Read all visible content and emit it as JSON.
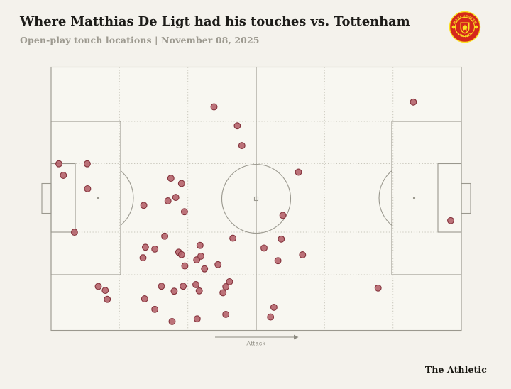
{
  "header": {
    "title": "Where Matthias De Ligt had his touches vs. Tottenham",
    "subtitle": "Open-play touch locations | November 08, 2025",
    "club_badge": {
      "name": "manchester-united-crest",
      "text_top": "MANCHESTER",
      "text_bottom": "UNITED",
      "red": "#d5281b",
      "gold": "#fbe122"
    }
  },
  "footer": {
    "brand": "The Athletic"
  },
  "chart_data": {
    "type": "scatter",
    "title": "Where Matthias De Ligt had his touches vs. Tottenham",
    "subtitle": "Open-play touch locations | November 08, 2025",
    "pitch": {
      "orientation": "horizontal",
      "attack_direction": "right",
      "attack_label": "Attack",
      "grid": "dotted zone grid: verticals at sixths of pitch length, horizontals aligned to penalty-box and six-yard-box edges",
      "coordinate_system": "percent of pitch: x 0=own goal line, 100=opponent goal line; y 0=top touchline, 100=bottom touchline"
    },
    "touch_count": 54,
    "touches": [
      [
        39.7,
        15.1
      ],
      [
        45.4,
        22.3
      ],
      [
        46.5,
        29.8
      ],
      [
        88.3,
        13.3
      ],
      [
        60.3,
        39.9
      ],
      [
        1.9,
        36.7
      ],
      [
        8.8,
        36.7
      ],
      [
        3.0,
        41.1
      ],
      [
        8.9,
        46.2
      ],
      [
        5.7,
        62.7
      ],
      [
        29.2,
        42.2
      ],
      [
        31.8,
        44.2
      ],
      [
        28.5,
        50.8
      ],
      [
        30.4,
        49.5
      ],
      [
        22.6,
        52.5
      ],
      [
        32.5,
        54.9
      ],
      [
        27.7,
        64.2
      ],
      [
        44.3,
        65.0
      ],
      [
        23.0,
        68.4
      ],
      [
        25.3,
        69.1
      ],
      [
        36.3,
        67.7
      ],
      [
        51.9,
        68.7
      ],
      [
        31.1,
        70.3
      ],
      [
        31.8,
        71.2
      ],
      [
        22.4,
        72.4
      ],
      [
        35.5,
        73.2
      ],
      [
        36.5,
        71.8
      ],
      [
        40.7,
        75.0
      ],
      [
        37.4,
        76.6
      ],
      [
        32.6,
        75.5
      ],
      [
        11.5,
        83.3
      ],
      [
        13.2,
        84.8
      ],
      [
        13.7,
        88.2
      ],
      [
        26.9,
        83.2
      ],
      [
        30.0,
        85.1
      ],
      [
        32.2,
        83.2
      ],
      [
        35.3,
        82.6
      ],
      [
        36.1,
        85.0
      ],
      [
        41.9,
        85.7
      ],
      [
        42.6,
        83.4
      ],
      [
        43.5,
        81.5
      ],
      [
        22.8,
        88.0
      ],
      [
        25.3,
        92.0
      ],
      [
        29.5,
        96.6
      ],
      [
        35.6,
        95.6
      ],
      [
        42.6,
        93.9
      ],
      [
        56.5,
        56.3
      ],
      [
        56.1,
        65.3
      ],
      [
        61.3,
        71.3
      ],
      [
        55.3,
        73.5
      ],
      [
        79.7,
        83.9
      ],
      [
        54.3,
        91.2
      ],
      [
        53.5,
        94.9
      ],
      [
        97.4,
        58.3
      ]
    ],
    "colors": {
      "touch_fill": "#b5636c",
      "touch_stroke": "#84333c",
      "pitch_line": "#9a988e",
      "zone_line": "#c9c7bc",
      "pitch_fill": "#f8f7f1",
      "background": "#f4f2ec",
      "text_dark": "#1d1c19",
      "text_muted": "#9d9a90"
    }
  }
}
